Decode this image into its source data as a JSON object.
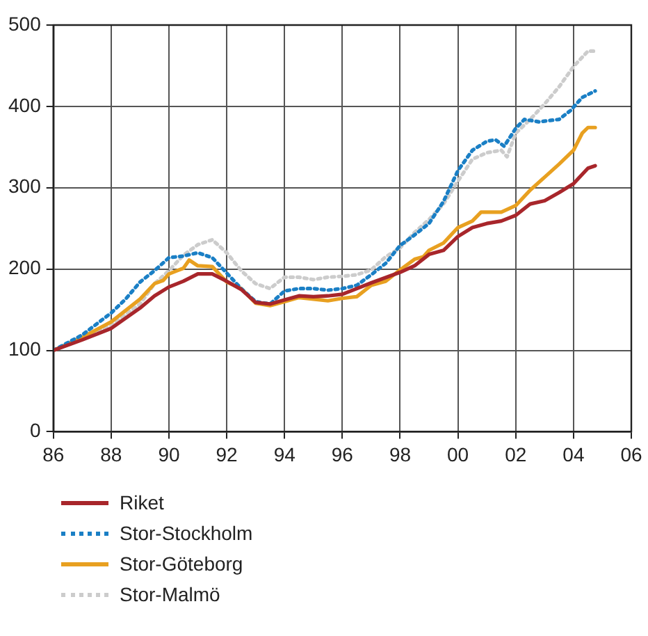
{
  "chart_data": {
    "type": "line",
    "legend": "bottom",
    "grid": true,
    "marker": "none",
    "xlim": [
      1986,
      2006
    ],
    "xticks": [
      {
        "value": 1986,
        "label": "86"
      },
      {
        "value": 1988,
        "label": "88"
      },
      {
        "value": 1990,
        "label": "90"
      },
      {
        "value": 1992,
        "label": "92"
      },
      {
        "value": 1994,
        "label": "94"
      },
      {
        "value": 1996,
        "label": "96"
      },
      {
        "value": 1998,
        "label": "98"
      },
      {
        "value": 2000,
        "label": "00"
      },
      {
        "value": 2002,
        "label": "02"
      },
      {
        "value": 2004,
        "label": "04"
      },
      {
        "value": 2006,
        "label": "06"
      }
    ],
    "ylim": [
      0,
      500
    ],
    "yticks": [
      0,
      100,
      200,
      300,
      400,
      500
    ],
    "series": [
      {
        "name": "Riket",
        "color": "#a8262b",
        "line_style": "solid",
        "x": [
          1986,
          1987,
          1988,
          1989,
          1989.5,
          1990,
          1990.5,
          1991,
          1991.5,
          1992,
          1992.5,
          1993,
          1993.5,
          1994,
          1994.5,
          1995,
          1995.5,
          1996,
          1997,
          1998,
          1998.5,
          1999,
          1999.5,
          2000,
          2000.5,
          2001,
          2001.5,
          2002,
          2002.5,
          2003,
          2003.5,
          2004,
          2004.5,
          2004.75
        ],
        "values": [
          100,
          113,
          127,
          152,
          167,
          178,
          185,
          194,
          194,
          185,
          175,
          159,
          157,
          162,
          167,
          166,
          167,
          169,
          183,
          196,
          204,
          218,
          223,
          240,
          251,
          256,
          259,
          266,
          280,
          284,
          294,
          305,
          324,
          327
        ]
      },
      {
        "name": "Stor-Stockholm",
        "color": "#1a7fc5",
        "line_style": "dotted",
        "x": [
          1986,
          1987,
          1988,
          1988.5,
          1989,
          1989.5,
          1990,
          1990.5,
          1991,
          1991.5,
          1992,
          1992.5,
          1993,
          1993.5,
          1994,
          1994.5,
          1995,
          1995.5,
          1996,
          1996.5,
          1997,
          1997.5,
          1998,
          1998.5,
          1999,
          1999.5,
          2000,
          2000.5,
          2001,
          2001.3,
          2001.6,
          2002,
          2002.3,
          2002.8,
          2003.5,
          2003.9,
          2004.3,
          2004.75
        ],
        "values": [
          100,
          119,
          146,
          163,
          184,
          198,
          214,
          216,
          220,
          214,
          195,
          176,
          160,
          157,
          173,
          176,
          176,
          174,
          176,
          180,
          193,
          207,
          229,
          242,
          256,
          283,
          321,
          346,
          357,
          359,
          351,
          373,
          384,
          381,
          384,
          395,
          411,
          419
        ]
      },
      {
        "name": "Stor-Göteborg",
        "color": "#e8a020",
        "line_style": "solid",
        "x": [
          1986,
          1987,
          1988,
          1989,
          1989.5,
          1989.8,
          1990,
          1990.5,
          1990.7,
          1991,
          1991.5,
          1992,
          1992.5,
          1993,
          1993.5,
          1994,
          1994.5,
          1995,
          1995.5,
          1996,
          1996.5,
          1997,
          1997.5,
          1998,
          1998.5,
          1998.8,
          1999,
          1999.5,
          2000,
          2000.5,
          2000.8,
          2001.5,
          2002,
          2002.5,
          2003,
          2003.5,
          2004,
          2004.3,
          2004.5,
          2004.75
        ],
        "values": [
          100,
          116,
          135,
          163,
          182,
          186,
          194,
          201,
          211,
          204,
          203,
          184,
          176,
          158,
          155,
          160,
          165,
          163,
          161,
          164,
          166,
          180,
          185,
          199,
          212,
          215,
          223,
          232,
          251,
          259,
          270,
          270,
          278,
          297,
          313,
          329,
          346,
          367,
          374,
          374
        ]
      },
      {
        "name": "Stor-Malmö",
        "color": "#cccccc",
        "line_style": "dotted",
        "x": [
          1986,
          1987,
          1988,
          1989,
          1989.5,
          1990,
          1990.5,
          1991,
          1991.5,
          1992,
          1992.5,
          1993,
          1993.5,
          1994,
          1994.5,
          1995,
          1995.5,
          1996,
          1996.5,
          1997,
          1997.5,
          1998,
          1998.5,
          1999,
          1999.5,
          2000,
          2000.5,
          2001,
          2001.5,
          2001.7,
          2002,
          2002.5,
          2003,
          2003.5,
          2004,
          2004.5,
          2004.75
        ],
        "values": [
          100,
          114,
          130,
          157,
          182,
          198,
          217,
          230,
          236,
          220,
          198,
          182,
          176,
          190,
          190,
          187,
          190,
          191,
          193,
          199,
          215,
          226,
          245,
          261,
          280,
          308,
          335,
          343,
          346,
          338,
          367,
          384,
          403,
          424,
          449,
          468,
          468
        ]
      }
    ]
  }
}
